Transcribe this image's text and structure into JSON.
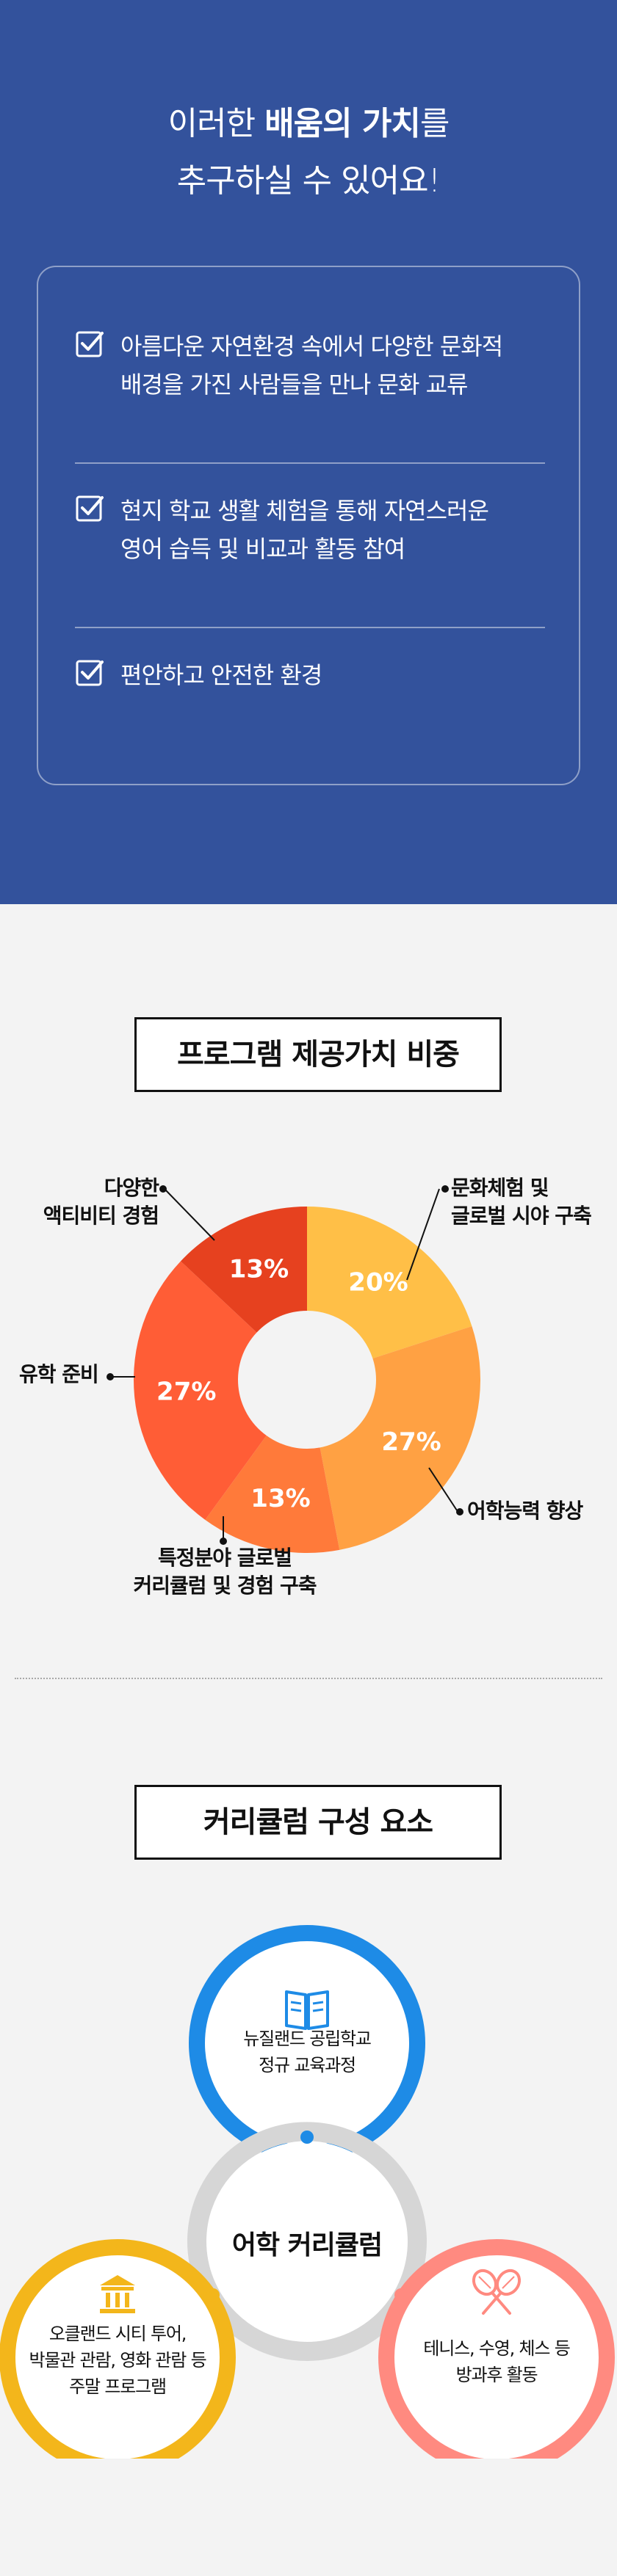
{
  "values": {
    "title_line1_pre": "이러한 ",
    "title_line1_bold": "배움의 가치",
    "title_line1_post": "를",
    "title_line2": "추구하실 수 있어요!",
    "items": [
      {
        "line1": "아름다운 자연환경 속에서 다양한 문화적",
        "line2": "배경을 가진 사람들을 만나 문화 교류"
      },
      {
        "line1": "현지 학교 생활 체험을 통해 자연스러운",
        "line2": "영어 습득 및 비교과 활동 참여"
      },
      {
        "line1": "편안하고 안전한 환경",
        "line2": ""
      }
    ],
    "check_icon": "checkbox-checked-icon"
  },
  "chart_section": {
    "heading": "프로그램 제공가치 비중"
  },
  "chart_data": {
    "type": "pie",
    "donut": true,
    "categories": [
      "문화체험 및 글로벌 시야 구축",
      "어학능력 향상",
      "특정분야 글로벌 커리큘럼 및 경험 구축",
      "유학 준비",
      "다양한 액티비티 경험"
    ],
    "values": [
      20,
      27,
      13,
      27,
      13
    ],
    "value_labels": [
      "20%",
      "27%",
      "13%",
      "27%",
      "13%"
    ],
    "label_lines": [
      [
        "문화체험 및",
        "글로벌 시야 구축"
      ],
      [
        "어학능력 향상"
      ],
      [
        "특정분야 글로벌",
        "커리큘럼 및 경험 구축"
      ],
      [
        "유학 준비"
      ],
      [
        "다양한",
        "액티비티 경험"
      ]
    ],
    "colors": [
      "#ffbf47",
      "#ffa143",
      "#ff7a3a",
      "#ff5d36",
      "#e6411f"
    ],
    "start_angle_deg": 0,
    "direction": "clockwise"
  },
  "curriculum": {
    "heading": "커리큘럼 구성 요소",
    "core": "어학 커리큘럼",
    "top": {
      "line1": "뉴질랜드 공립학교",
      "line2": "정규 교육과정",
      "icon": "open-book-icon",
      "color": "#1e8be6"
    },
    "left": {
      "line1": "오클랜드 시티 투어,",
      "line2": "박물관 관람, 영화 관람 등",
      "line3": "주말 프로그램",
      "icon": "museum-icon",
      "color": "#f3b61b"
    },
    "right": {
      "line1": "테니스, 수영, 체스 등",
      "line2": "방과후 활동",
      "icon": "tennis-rackets-icon",
      "color": "#ff8a80"
    },
    "core_ring_color": "#d6d6d6"
  }
}
